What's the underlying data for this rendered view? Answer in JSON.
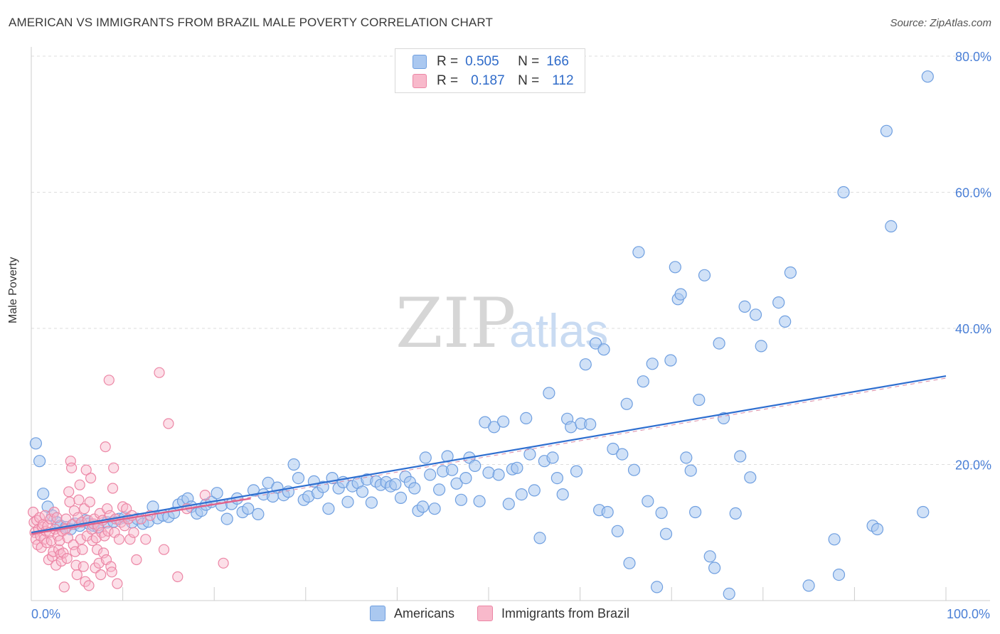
{
  "header": {
    "title": "AMERICAN VS IMMIGRANTS FROM BRAZIL MALE POVERTY CORRELATION CHART",
    "source": "Source: ZipAtlas.com"
  },
  "watermark": {
    "zip": "ZIP",
    "atlas": "atlas"
  },
  "legend_top": [
    {
      "r_label": "R =",
      "r_value": "0.505",
      "n_label": "N =",
      "n_value": "166"
    },
    {
      "r_label": "R =",
      "r_value": "0.187",
      "n_label": "N =",
      "n_value": "112"
    }
  ],
  "legend_bottom": [
    {
      "label": "Americans"
    },
    {
      "label": "Immigrants from Brazil"
    }
  ],
  "colors": {
    "americans_fill": "#aac8f0",
    "americans_stroke": "#6f9fe0",
    "americans_line": "#2f6fd0",
    "brazil_fill": "#f8b9cb",
    "brazil_stroke": "#ec86a5",
    "brazil_line": "#e0608a",
    "axis_text": "#4a7fd6",
    "grid": "#dddddd"
  },
  "chart_data": {
    "type": "scatter",
    "xlabel": "",
    "ylabel": "Male Poverty",
    "xlim": [
      0,
      100
    ],
    "ylim": [
      0,
      80
    ],
    "x_tick_labels": [
      {
        "value": 0,
        "label": "0.0%"
      },
      {
        "value": 100,
        "label": "100.0%"
      }
    ],
    "y_tick_labels": [
      {
        "value": 20,
        "label": "20.0%"
      },
      {
        "value": 40,
        "label": "40.0%"
      },
      {
        "value": 60,
        "label": "60.0%"
      },
      {
        "value": 80,
        "label": "80.0%"
      }
    ],
    "grid": true,
    "series": [
      {
        "name": "Americans",
        "r": 0.505,
        "n": 166,
        "trend": {
          "x": [
            0,
            100
          ],
          "y": [
            10.0,
            33.0
          ]
        },
        "points": [
          [
            0.5,
            23.1
          ],
          [
            0.9,
            20.5
          ],
          [
            1.3,
            15.7
          ],
          [
            1.8,
            13.8
          ],
          [
            2.3,
            12.5
          ],
          [
            2.8,
            11.5
          ],
          [
            3.2,
            11.0
          ],
          [
            3.8,
            10.8
          ],
          [
            4.3,
            10.5
          ],
          [
            4.8,
            11.3
          ],
          [
            5.3,
            11.0
          ],
          [
            5.9,
            11.8
          ],
          [
            6.3,
            11.3
          ],
          [
            6.8,
            11.0
          ],
          [
            7.3,
            10.8
          ],
          [
            8.3,
            11.5
          ],
          [
            9.0,
            11.6
          ],
          [
            9.6,
            12.0
          ],
          [
            10.2,
            12.2
          ],
          [
            11.0,
            11.5
          ],
          [
            11.6,
            12.0
          ],
          [
            12.2,
            11.3
          ],
          [
            12.8,
            11.6
          ],
          [
            13.3,
            13.8
          ],
          [
            13.8,
            12.1
          ],
          [
            14.4,
            12.5
          ],
          [
            15.0,
            12.3
          ],
          [
            15.6,
            12.9
          ],
          [
            16.1,
            14.1
          ],
          [
            16.6,
            14.6
          ],
          [
            17.1,
            15.0
          ],
          [
            17.5,
            13.8
          ],
          [
            18.1,
            12.8
          ],
          [
            18.6,
            13.2
          ],
          [
            19.1,
            14.1
          ],
          [
            19.7,
            14.5
          ],
          [
            20.3,
            15.8
          ],
          [
            20.8,
            14.0
          ],
          [
            21.4,
            12.0
          ],
          [
            21.9,
            14.2
          ],
          [
            22.5,
            15.0
          ],
          [
            23.1,
            13.0
          ],
          [
            23.7,
            13.5
          ],
          [
            24.3,
            16.2
          ],
          [
            24.8,
            12.7
          ],
          [
            25.4,
            15.6
          ],
          [
            25.9,
            17.3
          ],
          [
            26.4,
            15.3
          ],
          [
            26.9,
            16.6
          ],
          [
            27.6,
            15.5
          ],
          [
            28.1,
            16.0
          ],
          [
            28.7,
            20.0
          ],
          [
            29.2,
            18.0
          ],
          [
            29.8,
            14.8
          ],
          [
            30.3,
            15.3
          ],
          [
            30.9,
            17.5
          ],
          [
            31.3,
            15.8
          ],
          [
            31.9,
            16.7
          ],
          [
            32.5,
            13.5
          ],
          [
            32.9,
            18.0
          ],
          [
            33.6,
            16.5
          ],
          [
            34.1,
            17.4
          ],
          [
            34.6,
            14.5
          ],
          [
            35.1,
            16.8
          ],
          [
            35.7,
            17.3
          ],
          [
            36.2,
            16.0
          ],
          [
            36.7,
            17.8
          ],
          [
            37.2,
            14.4
          ],
          [
            37.7,
            17.5
          ],
          [
            38.2,
            17.0
          ],
          [
            38.8,
            17.4
          ],
          [
            39.3,
            16.8
          ],
          [
            39.8,
            17.1
          ],
          [
            40.4,
            15.1
          ],
          [
            40.9,
            18.2
          ],
          [
            41.4,
            17.4
          ],
          [
            41.9,
            16.5
          ],
          [
            42.3,
            13.2
          ],
          [
            42.8,
            13.8
          ],
          [
            43.1,
            21.0
          ],
          [
            43.6,
            18.5
          ],
          [
            44.1,
            13.5
          ],
          [
            44.6,
            16.3
          ],
          [
            45.0,
            19.0
          ],
          [
            45.5,
            21.2
          ],
          [
            46.0,
            19.2
          ],
          [
            46.5,
            17.2
          ],
          [
            47.0,
            14.8
          ],
          [
            47.5,
            18.0
          ],
          [
            47.9,
            21.0
          ],
          [
            48.5,
            19.8
          ],
          [
            49.0,
            14.6
          ],
          [
            49.6,
            26.2
          ],
          [
            50.0,
            18.8
          ],
          [
            50.6,
            25.5
          ],
          [
            51.1,
            18.5
          ],
          [
            51.6,
            26.3
          ],
          [
            52.2,
            14.2
          ],
          [
            52.6,
            19.3
          ],
          [
            53.1,
            19.5
          ],
          [
            53.6,
            15.6
          ],
          [
            54.1,
            26.8
          ],
          [
            54.5,
            21.5
          ],
          [
            55.0,
            16.2
          ],
          [
            55.6,
            9.2
          ],
          [
            56.1,
            20.5
          ],
          [
            56.6,
            30.5
          ],
          [
            57.0,
            21.0
          ],
          [
            57.5,
            18.0
          ],
          [
            58.1,
            15.6
          ],
          [
            58.6,
            26.7
          ],
          [
            59.0,
            25.5
          ],
          [
            59.6,
            19.0
          ],
          [
            60.1,
            26.0
          ],
          [
            60.6,
            34.7
          ],
          [
            61.1,
            25.9
          ],
          [
            61.7,
            37.8
          ],
          [
            62.1,
            13.3
          ],
          [
            62.6,
            36.9
          ],
          [
            63.0,
            13.0
          ],
          [
            63.6,
            22.3
          ],
          [
            64.1,
            10.2
          ],
          [
            64.6,
            21.5
          ],
          [
            65.1,
            28.9
          ],
          [
            65.4,
            5.5
          ],
          [
            65.9,
            19.2
          ],
          [
            66.4,
            51.2
          ],
          [
            66.9,
            32.2
          ],
          [
            67.4,
            14.6
          ],
          [
            67.9,
            34.8
          ],
          [
            68.4,
            2.0
          ],
          [
            68.9,
            12.9
          ],
          [
            69.4,
            9.8
          ],
          [
            69.9,
            35.3
          ],
          [
            70.4,
            49.0
          ],
          [
            70.7,
            44.3
          ],
          [
            71.0,
            45.0
          ],
          [
            71.6,
            21.0
          ],
          [
            72.1,
            19.1
          ],
          [
            72.6,
            13.0
          ],
          [
            73.0,
            29.5
          ],
          [
            73.6,
            47.8
          ],
          [
            74.2,
            6.5
          ],
          [
            74.7,
            4.8
          ],
          [
            75.2,
            37.8
          ],
          [
            75.7,
            26.8
          ],
          [
            76.3,
            1.0
          ],
          [
            77.0,
            12.8
          ],
          [
            77.5,
            21.2
          ],
          [
            78.0,
            43.2
          ],
          [
            78.6,
            18.1
          ],
          [
            79.2,
            42.0
          ],
          [
            79.8,
            37.4
          ],
          [
            81.7,
            43.8
          ],
          [
            82.4,
            41.0
          ],
          [
            83.0,
            48.2
          ],
          [
            85.0,
            2.2
          ],
          [
            87.8,
            9.0
          ],
          [
            88.3,
            3.8
          ],
          [
            88.8,
            60.0
          ],
          [
            92.0,
            11.0
          ],
          [
            92.5,
            10.5
          ],
          [
            93.5,
            69.0
          ],
          [
            94.0,
            55.0
          ],
          [
            97.5,
            13.0
          ],
          [
            98.0,
            77.0
          ]
        ]
      },
      {
        "name": "Immigrants from Brazil",
        "r": 0.187,
        "n": 112,
        "trend": {
          "x": [
            0,
            24
          ],
          "y": [
            9.8,
            15.0
          ]
        },
        "points": [
          [
            0.2,
            13.0
          ],
          [
            0.3,
            11.5
          ],
          [
            0.4,
            10.0
          ],
          [
            0.5,
            9.0
          ],
          [
            0.6,
            11.8
          ],
          [
            0.7,
            8.2
          ],
          [
            0.8,
            10.5
          ],
          [
            0.9,
            12.2
          ],
          [
            1.0,
            9.5
          ],
          [
            1.1,
            7.8
          ],
          [
            1.2,
            10.8
          ],
          [
            1.3,
            11.2
          ],
          [
            1.4,
            9.0
          ],
          [
            1.5,
            12.5
          ],
          [
            1.6,
            10.2
          ],
          [
            1.7,
            8.5
          ],
          [
            1.8,
            11.0
          ],
          [
            1.9,
            6.0
          ],
          [
            2.0,
            10.0
          ],
          [
            2.1,
            12.0
          ],
          [
            2.2,
            8.8
          ],
          [
            2.3,
            6.5
          ],
          [
            2.4,
            7.2
          ],
          [
            2.5,
            13.0
          ],
          [
            2.6,
            10.5
          ],
          [
            2.7,
            5.2
          ],
          [
            2.8,
            12.2
          ],
          [
            2.9,
            9.5
          ],
          [
            3.0,
            7.5
          ],
          [
            3.1,
            8.8
          ],
          [
            3.2,
            6.8
          ],
          [
            3.3,
            5.8
          ],
          [
            3.4,
            10.2
          ],
          [
            3.5,
            7.0
          ],
          [
            3.6,
            2.0
          ],
          [
            3.7,
            10.5
          ],
          [
            3.8,
            12.0
          ],
          [
            3.9,
            6.2
          ],
          [
            4.0,
            9.2
          ],
          [
            4.1,
            16.0
          ],
          [
            4.2,
            14.5
          ],
          [
            4.3,
            20.5
          ],
          [
            4.4,
            19.5
          ],
          [
            4.5,
            11.2
          ],
          [
            4.6,
            8.2
          ],
          [
            4.7,
            13.2
          ],
          [
            4.8,
            7.2
          ],
          [
            4.9,
            5.2
          ],
          [
            5.0,
            3.8
          ],
          [
            5.1,
            12.2
          ],
          [
            5.2,
            14.8
          ],
          [
            5.3,
            17.0
          ],
          [
            5.4,
            9.0
          ],
          [
            5.5,
            11.5
          ],
          [
            5.6,
            7.5
          ],
          [
            5.7,
            5.0
          ],
          [
            5.8,
            13.5
          ],
          [
            5.9,
            2.8
          ],
          [
            6.0,
            19.2
          ],
          [
            6.1,
            9.5
          ],
          [
            6.2,
            11.8
          ],
          [
            6.3,
            2.2
          ],
          [
            6.4,
            14.5
          ],
          [
            6.5,
            18.0
          ],
          [
            6.6,
            10.5
          ],
          [
            6.7,
            8.8
          ],
          [
            6.8,
            11.3
          ],
          [
            6.9,
            12.0
          ],
          [
            7.0,
            4.8
          ],
          [
            7.1,
            9.2
          ],
          [
            7.2,
            7.5
          ],
          [
            7.3,
            11.0
          ],
          [
            7.4,
            5.5
          ],
          [
            7.5,
            12.8
          ],
          [
            7.6,
            3.8
          ],
          [
            7.7,
            10.0
          ],
          [
            7.8,
            11.8
          ],
          [
            7.9,
            7.0
          ],
          [
            8.0,
            9.5
          ],
          [
            8.1,
            22.6
          ],
          [
            8.2,
            6.0
          ],
          [
            8.3,
            13.5
          ],
          [
            8.4,
            10.2
          ],
          [
            8.5,
            32.4
          ],
          [
            8.6,
            12.5
          ],
          [
            8.7,
            5.0
          ],
          [
            8.8,
            4.2
          ],
          [
            8.9,
            16.5
          ],
          [
            9.0,
            19.5
          ],
          [
            9.1,
            10.0
          ],
          [
            9.2,
            12.0
          ],
          [
            9.4,
            2.5
          ],
          [
            9.6,
            9.0
          ],
          [
            9.8,
            11.5
          ],
          [
            10.0,
            13.8
          ],
          [
            10.2,
            11.0
          ],
          [
            10.4,
            13.5
          ],
          [
            10.6,
            12.0
          ],
          [
            10.8,
            9.0
          ],
          [
            11.0,
            12.5
          ],
          [
            11.2,
            10.0
          ],
          [
            11.5,
            6.0
          ],
          [
            12.0,
            12.0
          ],
          [
            12.5,
            9.0
          ],
          [
            13.0,
            12.5
          ],
          [
            14.0,
            33.5
          ],
          [
            14.5,
            7.5
          ],
          [
            15.0,
            26.0
          ],
          [
            16.0,
            3.5
          ],
          [
            17.0,
            13.5
          ],
          [
            19.0,
            15.5
          ],
          [
            21.0,
            5.5
          ]
        ]
      }
    ]
  }
}
